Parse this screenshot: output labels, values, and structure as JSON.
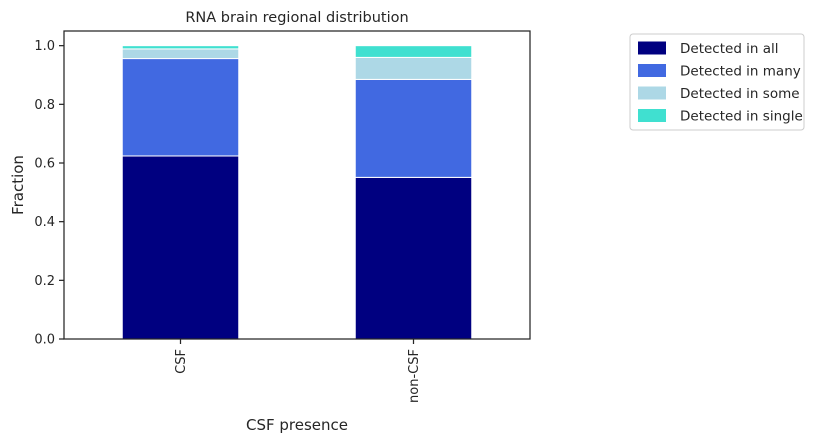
{
  "chart_data": {
    "type": "bar",
    "stacked": true,
    "title": "RNA brain regional distribution",
    "xlabel": "CSF presence",
    "ylabel": "Fraction",
    "categories": [
      "CSF",
      "non-CSF"
    ],
    "series": [
      {
        "name": "Detected in all",
        "color": "#000080",
        "values": [
          0.624,
          0.551
        ]
      },
      {
        "name": "Detected in many",
        "color": "#4169E1",
        "values": [
          0.332,
          0.334
        ]
      },
      {
        "name": "Detected in some",
        "color": "#ADD8E6",
        "values": [
          0.033,
          0.075
        ]
      },
      {
        "name": "Detected in single",
        "color": "#40E0D0",
        "values": [
          0.011,
          0.04
        ]
      }
    ],
    "ylim": [
      0,
      1.05
    ],
    "yticks": [
      0.0,
      0.2,
      0.4,
      0.6,
      0.8,
      1.0
    ],
    "ytick_labels": [
      "0.0",
      "0.2",
      "0.4",
      "0.6",
      "0.8",
      "1.0"
    ],
    "grid": false,
    "legend_position": "outside-top-right"
  }
}
